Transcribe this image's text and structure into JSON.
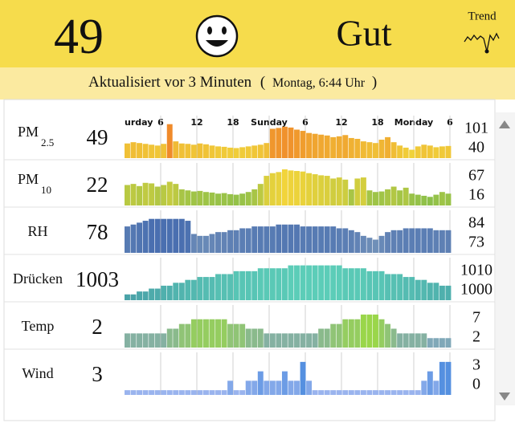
{
  "header": {
    "aqi": "49",
    "rating": "Gut",
    "trend_label": "Trend"
  },
  "status": {
    "updated": "Aktualisiert vor 3 Minuten",
    "open": "(",
    "time": "Montag, 6:44 Uhr",
    "close": ")"
  },
  "time_labels": [
    "urday",
    "6",
    "12",
    "18",
    "Sunday",
    "6",
    "12",
    "18",
    "Monday",
    "6"
  ],
  "rows": [
    {
      "name": "PM",
      "sub": "2.5",
      "value": "49",
      "max": 101,
      "min": 40,
      "ylim": [
        20,
        110
      ],
      "colors": [
        "#f0d23a",
        "#f08a2a"
      ],
      "values": [
        55,
        58,
        56,
        54,
        52,
        50,
        54,
        101,
        60,
        55,
        54,
        52,
        55,
        53,
        50,
        48,
        47,
        45,
        44,
        46,
        48,
        50,
        52,
        56,
        90,
        92,
        95,
        93,
        88,
        85,
        80,
        78,
        76,
        74,
        70,
        72,
        75,
        68,
        66,
        60,
        58,
        56,
        64,
        70,
        58,
        50,
        45,
        40,
        48,
        52,
        50,
        46,
        48,
        49
      ]
    },
    {
      "name": "PM",
      "sub": "10",
      "value": "22",
      "max": 67,
      "min": 16,
      "ylim": [
        0,
        70
      ],
      "colors": [
        "#8cc04a",
        "#f2d43a"
      ],
      "values": [
        38,
        40,
        36,
        42,
        41,
        35,
        38,
        44,
        40,
        30,
        28,
        26,
        27,
        25,
        24,
        22,
        23,
        21,
        20,
        22,
        25,
        30,
        40,
        55,
        60,
        62,
        67,
        65,
        64,
        63,
        60,
        58,
        56,
        55,
        50,
        52,
        48,
        30,
        50,
        52,
        28,
        25,
        26,
        30,
        35,
        28,
        33,
        22,
        20,
        18,
        16,
        20,
        25,
        22
      ]
    },
    {
      "name": "RH",
      "value": "78",
      "max": 84,
      "min": 73,
      "ylim": [
        66,
        86
      ],
      "colors": [
        "#6f8fb8",
        "#4a6fb0"
      ],
      "values": [
        80,
        81,
        82,
        83,
        84,
        84,
        84,
        84,
        84,
        84,
        83,
        76,
        75,
        75,
        76,
        77,
        77,
        78,
        78,
        79,
        79,
        80,
        80,
        80,
        80,
        81,
        81,
        81,
        81,
        80,
        80,
        80,
        80,
        80,
        80,
        79,
        79,
        78,
        77,
        75,
        74,
        73,
        75,
        77,
        78,
        78,
        79,
        79,
        79,
        79,
        79,
        78,
        78,
        78
      ]
    },
    {
      "name": "Drücken",
      "value": "1003",
      "max": 1010,
      "min": 1000,
      "ylim": [
        998,
        1011
      ],
      "colors": [
        "#4aa3a8",
        "#5ccdb8"
      ],
      "values": [
        1000,
        1000,
        1001,
        1001,
        1002,
        1002,
        1003,
        1003,
        1004,
        1004,
        1005,
        1005,
        1006,
        1006,
        1006,
        1007,
        1007,
        1007,
        1008,
        1008,
        1008,
        1008,
        1009,
        1009,
        1009,
        1009,
        1009,
        1010,
        1010,
        1010,
        1010,
        1010,
        1010,
        1010,
        1010,
        1010,
        1009,
        1009,
        1009,
        1009,
        1008,
        1008,
        1008,
        1007,
        1007,
        1007,
        1006,
        1006,
        1005,
        1005,
        1004,
        1004,
        1003,
        1003
      ]
    },
    {
      "name": "Temp",
      "value": "2",
      "max": 7,
      "min": 2,
      "ylim": [
        0,
        8
      ],
      "colors": [
        "#80a8b8",
        "#9ad64a"
      ],
      "values": [
        3,
        3,
        3,
        3,
        3,
        3,
        3,
        4,
        4,
        5,
        5,
        6,
        6,
        6,
        6,
        6,
        6,
        5,
        5,
        5,
        4,
        4,
        4,
        3,
        3,
        3,
        3,
        3,
        3,
        3,
        3,
        3,
        4,
        4,
        5,
        5,
        6,
        6,
        6,
        7,
        7,
        7,
        6,
        5,
        4,
        3,
        3,
        3,
        3,
        3,
        2,
        2,
        2,
        2
      ]
    },
    {
      "name": "Wind",
      "value": "3",
      "max": 3,
      "min": 0,
      "ylim": [
        -0.5,
        3.5
      ],
      "colors": [
        "#9ab4ee",
        "#5590e0"
      ],
      "values": [
        0,
        0,
        0,
        0,
        0,
        0,
        0,
        0,
        0,
        0,
        0,
        0,
        0,
        0,
        0,
        0,
        0,
        1,
        0,
        0,
        1,
        1,
        2,
        1,
        1,
        1,
        2,
        1,
        1,
        3,
        1,
        0,
        0,
        0,
        0,
        0,
        0,
        0,
        0,
        0,
        0,
        0,
        0,
        0,
        0,
        0,
        0,
        0,
        0,
        1,
        2,
        1,
        3,
        3
      ]
    }
  ]
}
